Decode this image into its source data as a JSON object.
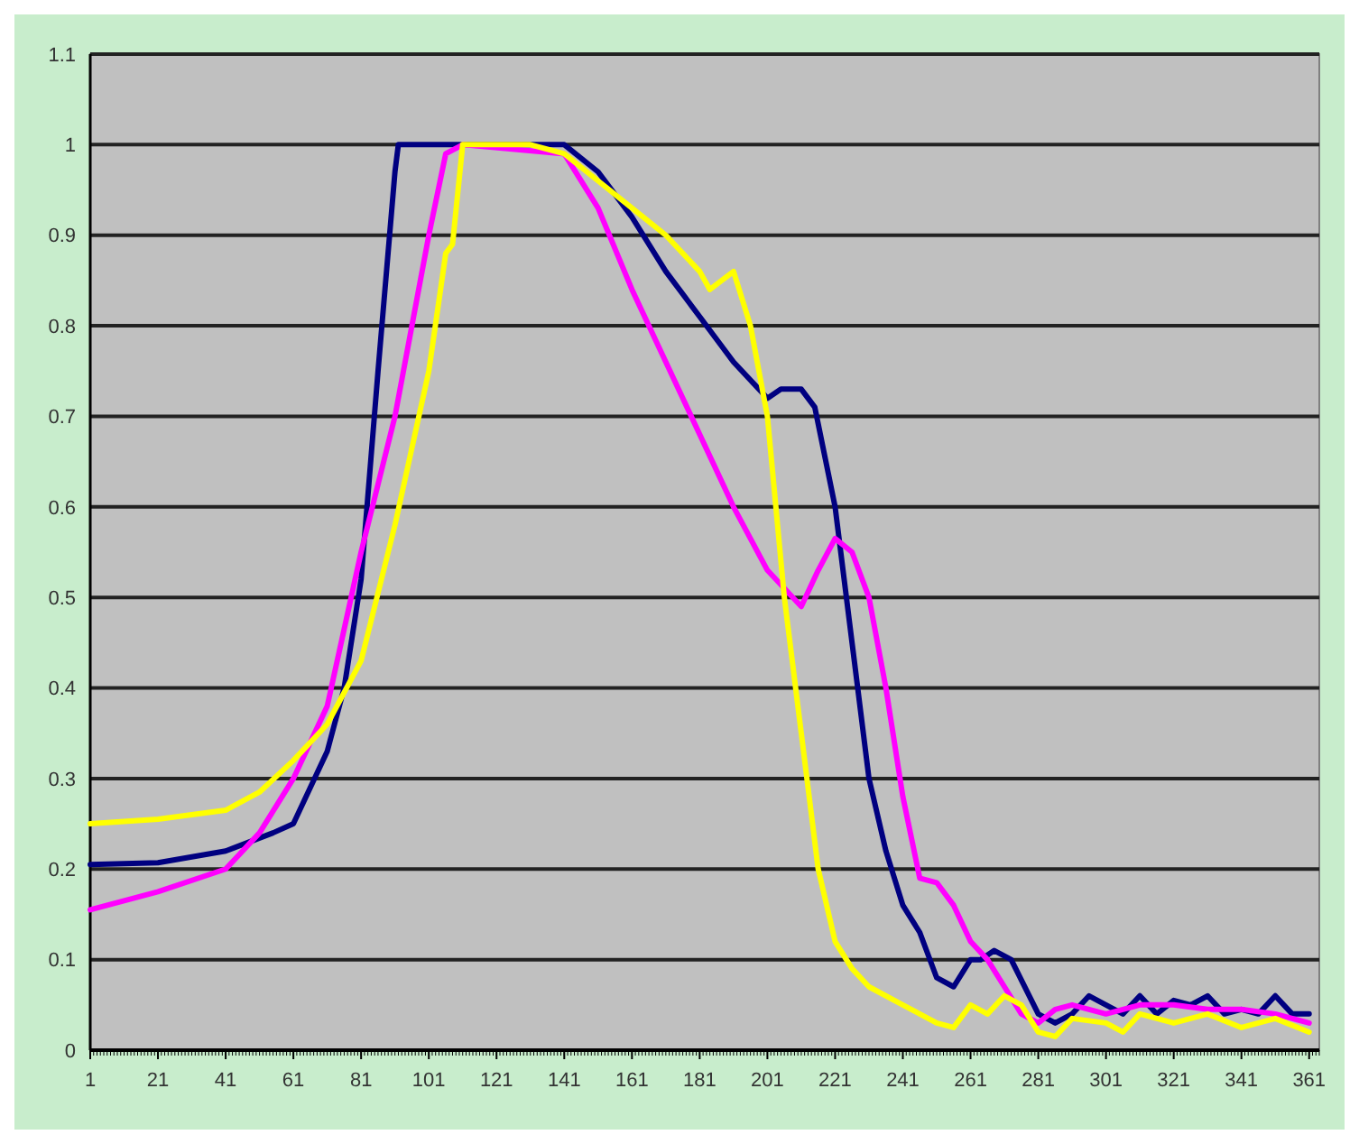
{
  "chart_data": {
    "type": "line",
    "xlim": [
      1,
      364
    ],
    "xticks": [
      1,
      21,
      41,
      61,
      81,
      101,
      121,
      141,
      161,
      181,
      201,
      221,
      241,
      261,
      281,
      301,
      321,
      341,
      361
    ],
    "ylim": [
      0,
      1.1
    ],
    "yticks": [
      0,
      0.1,
      0.2,
      0.3,
      0.4,
      0.5,
      0.6,
      0.7,
      0.8,
      0.9,
      1,
      1.1
    ],
    "grid": "y",
    "marker": "none",
    "line_style": "solid",
    "series": [
      {
        "color": "#000080",
        "x": [
          1,
          21,
          41,
          55,
          61,
          71,
          76,
          81,
          86,
          91,
          92,
          141,
          151,
          161,
          171,
          181,
          191,
          201,
          205,
          211,
          215,
          221,
          226,
          231,
          236,
          241,
          246,
          251,
          256,
          261,
          264,
          268,
          273,
          281,
          286,
          291,
          296,
          301,
          306,
          311,
          316,
          321,
          326,
          331,
          336,
          341,
          346,
          351,
          356,
          361
        ],
        "values": [
          0.205,
          0.207,
          0.22,
          0.24,
          0.25,
          0.33,
          0.4,
          0.52,
          0.75,
          0.97,
          1,
          1,
          0.97,
          0.92,
          0.86,
          0.81,
          0.76,
          0.72,
          0.73,
          0.73,
          0.71,
          0.6,
          0.45,
          0.3,
          0.22,
          0.16,
          0.13,
          0.08,
          0.07,
          0.1,
          0.1,
          0.11,
          0.1,
          0.04,
          0.03,
          0.04,
          0.06,
          0.05,
          0.04,
          0.06,
          0.04,
          0.055,
          0.05,
          0.06,
          0.04,
          0.045,
          0.04,
          0.06,
          0.04,
          0.04
        ]
      },
      {
        "color": "#ff00ff",
        "x": [
          1,
          21,
          41,
          51,
          61,
          71,
          81,
          91,
          96,
          101,
          106,
          111,
          141,
          151,
          161,
          171,
          181,
          191,
          201,
          211,
          216,
          221,
          226,
          231,
          236,
          241,
          246,
          251,
          256,
          261,
          266,
          271,
          276,
          281,
          286,
          291,
          301,
          311,
          321,
          331,
          341,
          351,
          361
        ],
        "values": [
          0.155,
          0.175,
          0.2,
          0.24,
          0.3,
          0.38,
          0.55,
          0.7,
          0.8,
          0.9,
          0.99,
          1,
          0.99,
          0.93,
          0.84,
          0.76,
          0.68,
          0.6,
          0.53,
          0.49,
          0.53,
          0.565,
          0.55,
          0.5,
          0.4,
          0.28,
          0.19,
          0.185,
          0.16,
          0.12,
          0.1,
          0.07,
          0.04,
          0.03,
          0.045,
          0.05,
          0.04,
          0.05,
          0.05,
          0.045,
          0.045,
          0.04,
          0.03
        ]
      },
      {
        "color": "#ffff00",
        "x": [
          1,
          21,
          41,
          51,
          61,
          71,
          81,
          91,
          101,
          106,
          108,
          111,
          131,
          141,
          151,
          161,
          171,
          181,
          184,
          191,
          196,
          201,
          206,
          211,
          216,
          221,
          226,
          231,
          241,
          251,
          256,
          261,
          266,
          271,
          276,
          281,
          286,
          291,
          301,
          306,
          311,
          321,
          331,
          341,
          346,
          351,
          361
        ],
        "values": [
          0.25,
          0.255,
          0.265,
          0.285,
          0.32,
          0.36,
          0.43,
          0.58,
          0.75,
          0.88,
          0.89,
          1,
          1,
          0.99,
          0.96,
          0.93,
          0.9,
          0.86,
          0.84,
          0.86,
          0.8,
          0.7,
          0.5,
          0.35,
          0.2,
          0.12,
          0.09,
          0.07,
          0.05,
          0.03,
          0.025,
          0.05,
          0.04,
          0.06,
          0.05,
          0.02,
          0.015,
          0.035,
          0.03,
          0.02,
          0.04,
          0.03,
          0.04,
          0.025,
          0.03,
          0.035,
          0.02
        ]
      }
    ]
  }
}
